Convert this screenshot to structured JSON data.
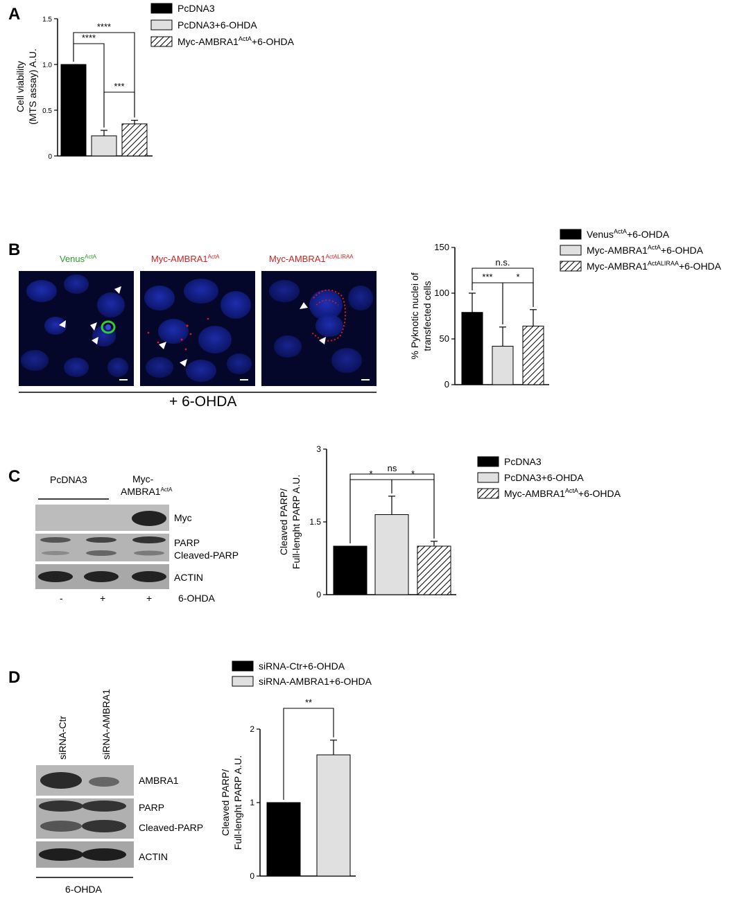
{
  "panels": {
    "A": "A",
    "B": "B",
    "C": "C",
    "D": "D"
  },
  "chart_data": [
    {
      "id": "A",
      "type": "bar",
      "ylabel_lines": [
        "Cell viability",
        "(MTS assay) A.U."
      ],
      "yticks": [
        "0",
        "0.5",
        "1.0",
        "1.5"
      ],
      "ylim": [
        0,
        1.5
      ],
      "series": [
        {
          "name": "PcDNA3",
          "value": 1.0,
          "error": 0
        },
        {
          "name": "PcDNA3+6-OHDA",
          "value": 0.22,
          "error": 0.06
        },
        {
          "name": "Myc-AMBRA1+6-OHDA",
          "name_parts": [
            "Myc-AMBRA1",
            "ActA",
            "+6-OHDA"
          ],
          "value": 0.35,
          "error": 0.04
        }
      ],
      "significance": [
        {
          "from": 0,
          "to": 1,
          "label": "****"
        },
        {
          "from": 0,
          "to": 2,
          "label": "****"
        },
        {
          "from": 1,
          "to": 2,
          "label": "***"
        }
      ],
      "legend_placement": "top-right"
    },
    {
      "id": "B",
      "type": "bar",
      "ylabel_lines": [
        "% Pyknotic nuclei of",
        "transfected cells"
      ],
      "yticks": [
        "0",
        "50",
        "100",
        "150"
      ],
      "ylim": [
        0,
        150
      ],
      "series": [
        {
          "name_parts": [
            "Venus",
            "ActA",
            "+6-OHDA"
          ],
          "value": 79,
          "error": 21
        },
        {
          "name_parts": [
            "Myc-AMBRA1",
            "ActA",
            "+6-OHDA"
          ],
          "value": 42,
          "error": 21
        },
        {
          "name_parts": [
            "Myc-AMBRA1",
            "ActALIRAA",
            "+6-OHDA"
          ],
          "value": 64,
          "error": 18
        }
      ],
      "significance": [
        {
          "from": 0,
          "to": 2,
          "label": "n.s."
        },
        {
          "from": 0,
          "to": 1,
          "label": "***"
        },
        {
          "from": 1,
          "to": 2,
          "label": "*"
        }
      ],
      "legend_placement": "top-right"
    },
    {
      "id": "C",
      "type": "bar",
      "ylabel_lines": [
        "Cleaved PARP/",
        "Full-lenght PARP A.U."
      ],
      "yticks": [
        "0",
        "1.5",
        "3"
      ],
      "ylim": [
        0,
        3
      ],
      "series": [
        {
          "name": "PcDNA3",
          "value": 1.0,
          "error": 0
        },
        {
          "name": "PcDNA3+6-OHDA",
          "value": 1.65,
          "error": 0.38
        },
        {
          "name_parts": [
            "Myc-AMBRA1",
            "ActA",
            "+6-OHDA"
          ],
          "value": 1.0,
          "error": 0.1
        }
      ],
      "significance": [
        {
          "from": 0,
          "to": 2,
          "label": "ns"
        },
        {
          "from": 0,
          "to": 1,
          "label": "*"
        },
        {
          "from": 1,
          "to": 2,
          "label": "*"
        }
      ],
      "legend_placement": "top-right"
    },
    {
      "id": "D",
      "type": "bar",
      "ylabel_lines": [
        "Cleaved PARP/",
        "Full-lenght PARP A.U."
      ],
      "yticks": [
        "0",
        "1",
        "2"
      ],
      "ylim": [
        0,
        2
      ],
      "series": [
        {
          "name": "siRNA-Ctr+6-OHDA",
          "value": 1.0,
          "error": 0
        },
        {
          "name": "siRNA-AMBRA1+6-OHDA",
          "value": 1.65,
          "error": 0.2
        }
      ],
      "significance": [
        {
          "from": 0,
          "to": 1,
          "label": "**"
        }
      ],
      "legend_placement": "top"
    }
  ],
  "microscopy": {
    "titles": [
      {
        "parts": [
          "Venus",
          "ActA"
        ],
        "color": "#2aa02a"
      },
      {
        "parts": [
          "Myc-AMBRA1",
          "ActA"
        ],
        "color": "#d42020"
      },
      {
        "parts": [
          "Myc-AMBRA1",
          "ActALIRAA"
        ],
        "color": "#d42020"
      }
    ],
    "treatment": "+ 6-OHDA"
  },
  "blot_C": {
    "group_pcdna3": "PcDNA3",
    "group_myc": [
      "Myc-",
      "AMBRA1",
      "ActA"
    ],
    "rows": [
      "Myc",
      "PARP",
      "Cleaved-PARP",
      "ACTIN"
    ],
    "treatment_signs": [
      "-",
      "+",
      "+"
    ],
    "treatment_label": "6-OHDA"
  },
  "blot_D": {
    "lanes": [
      "siRNA-Ctr",
      "siRNA-AMBRA1"
    ],
    "rows": [
      "AMBRA1",
      "PARP",
      "Cleaved-PARP",
      "ACTIN"
    ],
    "treatment_label": "6-OHDA"
  },
  "colors": {
    "black_bar": "#000000",
    "grey_bar": "#e0e0e0",
    "nuclei_blue": "#1b2bb0",
    "green_signal": "#33cc33",
    "red_signal": "#e01818"
  }
}
